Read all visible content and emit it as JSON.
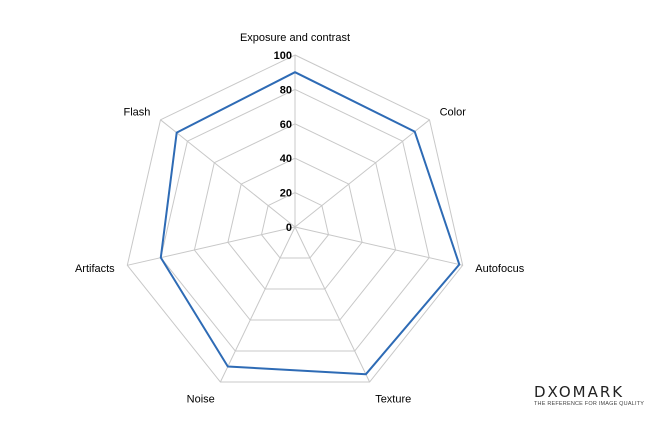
{
  "chart_data": {
    "type": "radar",
    "axes": [
      "Exposure and contrast",
      "Color",
      "Autofocus",
      "Texture",
      "Noise",
      "Artifacts",
      "Flash"
    ],
    "rlim": [
      0,
      100
    ],
    "ticks": [
      0,
      20,
      40,
      60,
      80,
      100
    ],
    "series": [
      {
        "values": [
          90,
          89,
          98,
          95,
          90,
          80,
          88
        ],
        "color": "#2e6bb5"
      }
    ],
    "grid_color": "#c8c8c8",
    "legend": "none"
  },
  "logo": {
    "wordmark": "DXOMARK",
    "tagline": "THE REFERENCE FOR IMAGE QUALITY"
  }
}
